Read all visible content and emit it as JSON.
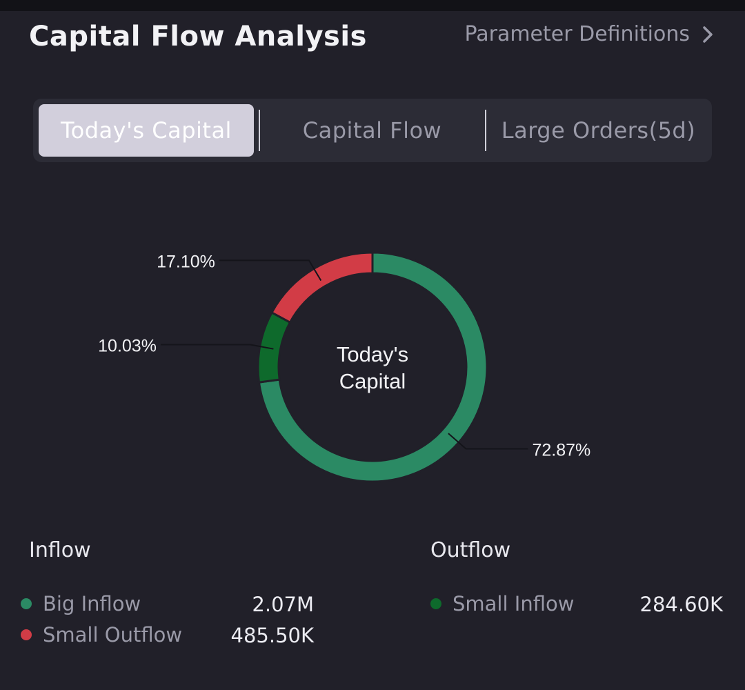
{
  "header": {
    "title": "Capital Flow Analysis",
    "param_link": "Parameter Definitions"
  },
  "tabs": [
    {
      "label": "Today's Capital",
      "active": true
    },
    {
      "label": "Capital Flow",
      "active": false
    },
    {
      "label": "Large Orders(5d)",
      "active": false
    }
  ],
  "chart_data": {
    "type": "pie",
    "center_label": [
      "Today's",
      "Capital"
    ],
    "slices": [
      {
        "value": 72.87,
        "label": "72.87%",
        "color": "#2b8a64"
      },
      {
        "value": 10.03,
        "label": "10.03%",
        "color": "#0e6a2c"
      },
      {
        "value": 17.1,
        "label": "17.10%",
        "color": "#d23c46"
      }
    ]
  },
  "legend": {
    "inflow_heading": "Inflow",
    "outflow_heading": "Outflow",
    "items": [
      {
        "name": "Big Inflow",
        "value": "2.07M",
        "color": "#2b8a64"
      },
      {
        "name": "Small Outflow",
        "value": "485.50K",
        "color": "#d23c46"
      },
      {
        "name": "Small Inflow",
        "value": "284.60K",
        "color": "#0e6a2c"
      }
    ]
  }
}
